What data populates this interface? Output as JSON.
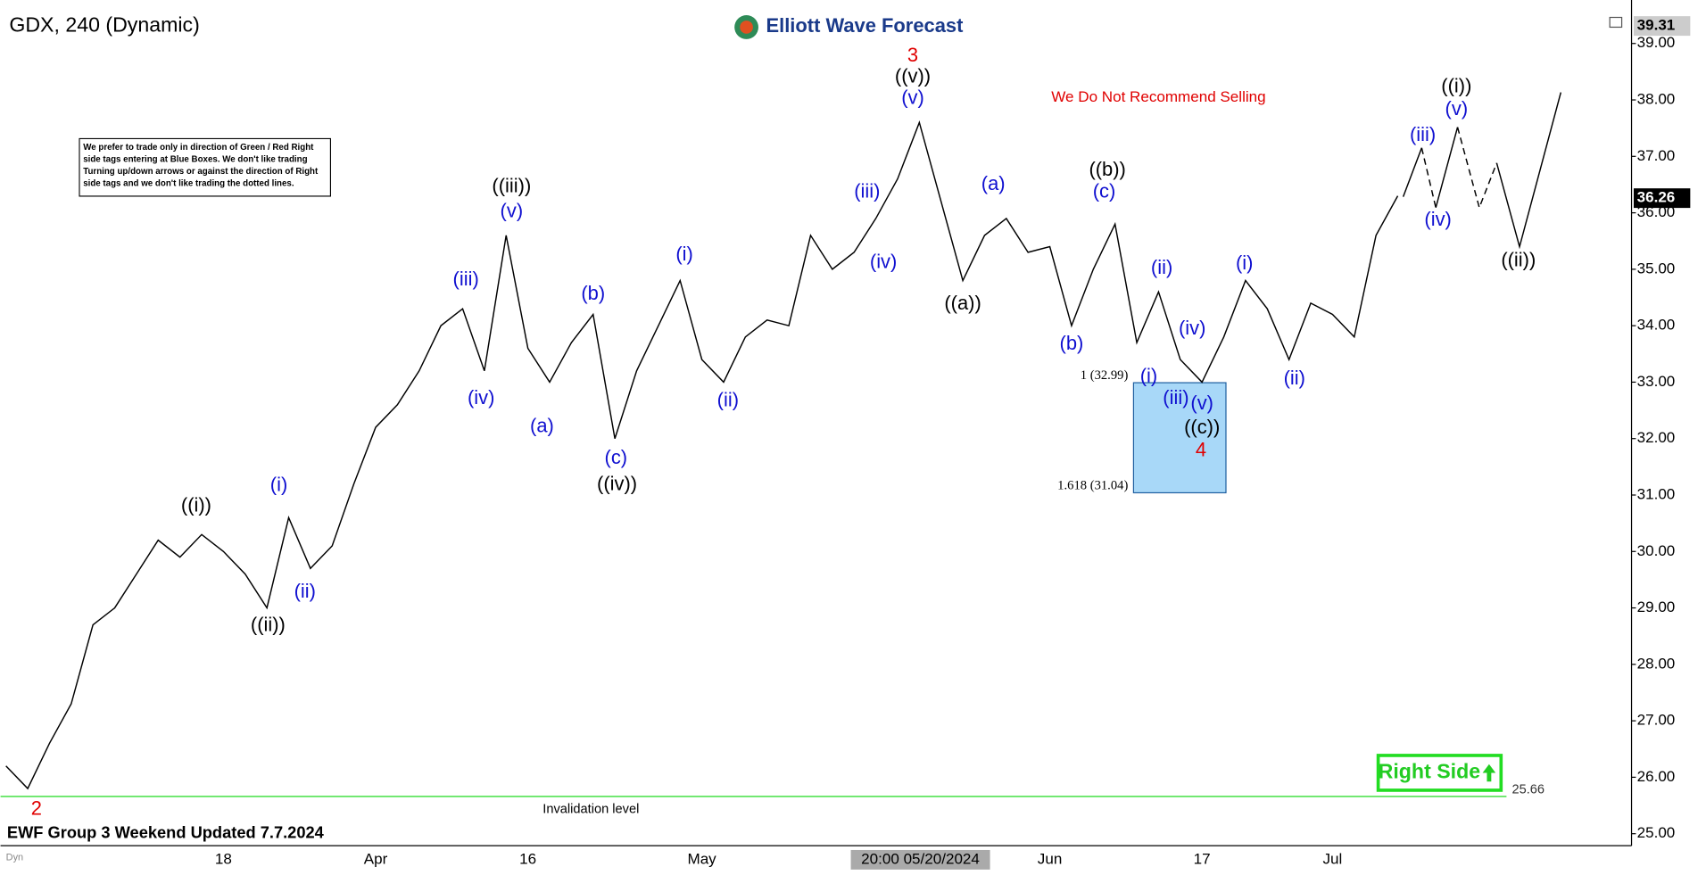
{
  "chart_data": {
    "type": "line",
    "title": "GDX, 240 (Dynamic)",
    "brand": "Elliott Wave Forecast",
    "footer": "EWF Group 3 Weekend Updated 7.7.2024",
    "corner_tag": "Dyn",
    "note": "We prefer to trade only in direction of Green / Red Right side tags entering at Blue Boxes. We don't like trading Turning up/down arrows or against the direction of Right side tags and we don't like trading the dotted lines.",
    "warning": "We Do Not Recommend Selling",
    "badge": "Right Side",
    "crosshair_label": "20:00 05/20/2024",
    "categories": [
      null,
      null,
      null,
      null,
      null,
      null,
      null,
      null,
      null,
      null,
      "18",
      null,
      null,
      null,
      null,
      null,
      null,
      "Apr",
      null,
      null,
      null,
      null,
      null,
      null,
      "16",
      null,
      null,
      null,
      null,
      null,
      null,
      null,
      "May",
      null,
      null,
      null,
      null,
      null,
      null,
      null,
      null,
      null,
      null,
      null,
      null,
      null,
      null,
      null,
      "Jun",
      null,
      null,
      null,
      null,
      null,
      null,
      "17",
      null,
      null,
      null,
      null,
      null,
      "Jul",
      null,
      null,
      null
    ],
    "series": [
      {
        "name": "GDX",
        "color": "#000000",
        "values": [
          26.2,
          25.8,
          26.6,
          27.3,
          28.7,
          29.0,
          29.6,
          30.2,
          29.9,
          30.3,
          30.0,
          29.6,
          29.0,
          30.6,
          29.7,
          30.1,
          31.2,
          32.2,
          32.6,
          33.2,
          34.0,
          34.3,
          33.2,
          35.6,
          33.6,
          33.0,
          33.7,
          34.2,
          32.0,
          33.2,
          34.0,
          34.8,
          33.4,
          33.0,
          33.8,
          34.1,
          34.0,
          35.6,
          35.0,
          35.3,
          35.9,
          36.6,
          37.6,
          36.2,
          34.8,
          35.6,
          35.9,
          35.3,
          35.4,
          34.0,
          35.0,
          35.8,
          33.7,
          34.6,
          33.4,
          33.0,
          33.8,
          34.8,
          34.3,
          33.4,
          34.4,
          34.2,
          33.8,
          35.6,
          36.3
        ]
      }
    ],
    "ylim": [
      24.7,
      39.5
    ],
    "yticks": [
      {
        "value": 25,
        "label": "25.00"
      },
      {
        "value": 26,
        "label": "26.00"
      },
      {
        "value": 27,
        "label": "27.00"
      },
      {
        "value": 28,
        "label": "28.00"
      },
      {
        "value": 29,
        "label": "29.00"
      },
      {
        "value": 30,
        "label": "30.00"
      },
      {
        "value": 31,
        "label": "31.00"
      },
      {
        "value": 32,
        "label": "32.00"
      },
      {
        "value": 33,
        "label": "33.00"
      },
      {
        "value": 34,
        "label": "34.00"
      },
      {
        "value": 35,
        "label": "35.00"
      },
      {
        "value": 36,
        "label": "36.00"
      },
      {
        "value": 37,
        "label": "37.00"
      },
      {
        "value": 38,
        "label": "38.00"
      },
      {
        "value": 39,
        "label": "39.00"
      }
    ],
    "last_price": 36.26,
    "high_price": 39.31,
    "invalidation": {
      "value": 25.66,
      "label": "Invalidation level",
      "color": "#33dd33"
    },
    "blue_box": {
      "color": "#a8d8f8",
      "top": {
        "value": 32.99,
        "label": "1 (32.99)"
      },
      "bottom": {
        "value": 31.04,
        "label": "1.618 (31.04)"
      }
    },
    "wave_labels": [
      {
        "text": "((i))",
        "color": "#000000"
      },
      {
        "text": "((ii))",
        "color": "#000000"
      },
      {
        "text": "((iii))",
        "color": "#000000"
      },
      {
        "text": "((iv))",
        "color": "#000000"
      },
      {
        "text": "((v))",
        "color": "#000000"
      },
      {
        "text": "((a))",
        "color": "#000000"
      },
      {
        "text": "((b))",
        "color": "#000000"
      },
      {
        "text": "((c))",
        "color": "#000000"
      },
      {
        "text": "((i))",
        "color": "#000000"
      },
      {
        "text": "((ii))",
        "color": "#000000"
      },
      {
        "text": "3",
        "color": "#e00000"
      },
      {
        "text": "4",
        "color": "#e00000"
      },
      {
        "text": "2",
        "color": "#e00000"
      },
      {
        "text": "(i)",
        "color": "#1010d0"
      },
      {
        "text": "(ii)",
        "color": "#1010d0"
      },
      {
        "text": "(iii)",
        "color": "#1010d0"
      },
      {
        "text": "(iv)",
        "color": "#1010d0"
      },
      {
        "text": "(v)",
        "color": "#1010d0"
      },
      {
        "text": "(a)",
        "color": "#1010d0"
      },
      {
        "text": "(b)",
        "color": "#1010d0"
      },
      {
        "text": "(c)",
        "color": "#1010d0"
      },
      {
        "text": "(i)",
        "color": "#1010d0"
      },
      {
        "text": "(ii)",
        "color": "#1010d0"
      },
      {
        "text": "(iii)",
        "color": "#1010d0"
      },
      {
        "text": "(iv)",
        "color": "#1010d0"
      },
      {
        "text": "(v)",
        "color": "#1010d0"
      },
      {
        "text": "(a)",
        "color": "#1010d0"
      },
      {
        "text": "(b)",
        "color": "#1010d0"
      },
      {
        "text": "(c)",
        "color": "#1010d0"
      },
      {
        "text": "(i)",
        "color": "#1010d0"
      },
      {
        "text": "(ii)",
        "color": "#1010d0"
      },
      {
        "text": "(iii)",
        "color": "#1010d0"
      },
      {
        "text": "(iv)",
        "color": "#1010d0"
      },
      {
        "text": "(v)",
        "color": "#1010d0"
      },
      {
        "text": "(i)",
        "color": "#1010d0"
      },
      {
        "text": "(ii)",
        "color": "#1010d0"
      },
      {
        "text": "(iii)",
        "color": "#1010d0"
      },
      {
        "text": "(iv)",
        "color": "#1010d0"
      },
      {
        "text": "(v)",
        "color": "#1010d0"
      }
    ]
  }
}
